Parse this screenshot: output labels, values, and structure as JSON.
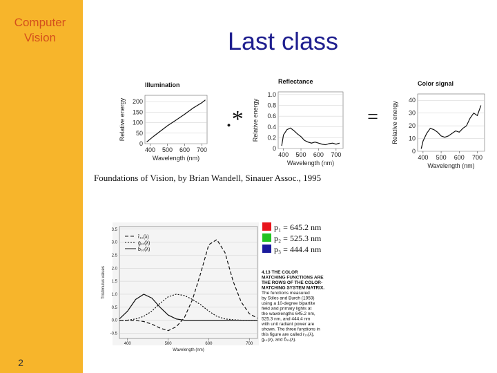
{
  "sidebar": {
    "title_lines": [
      "Computer",
      "Vision"
    ],
    "page_number": "2"
  },
  "title": "Last class",
  "operators": [
    ".*",
    "="
  ],
  "citation": "Foundations of Vision, by Brian Wandell, Sinauer Assoc., 1995",
  "figures": [
    {
      "type": "line",
      "title": "Illumination",
      "x_label": "Wavelength (nm)",
      "y_label": "Relative energy",
      "xlim": [
        370,
        730
      ],
      "ylim": [
        0,
        230
      ],
      "xticks": [
        400,
        500,
        600,
        700
      ],
      "yticks": [
        0,
        50,
        100,
        150,
        200
      ],
      "x": [
        380,
        420,
        460,
        500,
        550,
        600,
        650,
        700,
        720
      ],
      "series": [
        {
          "color": "#111111",
          "values": [
            8,
            35,
            60,
            85,
            112,
            140,
            170,
            195,
            208
          ]
        }
      ]
    },
    {
      "type": "line",
      "title": "Reflectance",
      "x_label": "Wavelength (nm)",
      "y_label": "Relative energy",
      "xlim": [
        370,
        740
      ],
      "ylim": [
        0,
        1.05
      ],
      "xticks": [
        400,
        500,
        600,
        700
      ],
      "yticks": [
        0,
        0.2,
        0.4,
        0.6,
        0.8,
        {
          "value": 1,
          "label": "1.0"
        }
      ],
      "x": [
        390,
        400,
        420,
        440,
        460,
        480,
        500,
        520,
        540,
        560,
        580,
        600,
        620,
        640,
        660,
        680,
        700,
        720
      ],
      "series": [
        {
          "color": "#111111",
          "values": [
            0.05,
            0.25,
            0.35,
            0.38,
            0.33,
            0.27,
            0.22,
            0.15,
            0.12,
            0.1,
            0.12,
            0.1,
            0.08,
            0.07,
            0.09,
            0.1,
            0.08,
            0.1
          ]
        }
      ]
    },
    {
      "type": "line",
      "title": "Color signal",
      "x_label": "Wavelength (nm)",
      "y_label": "Relative energy",
      "xlim": [
        370,
        740
      ],
      "ylim": [
        0,
        45
      ],
      "xticks": [
        400,
        500,
        600,
        700
      ],
      "yticks": [
        0,
        10,
        20,
        30,
        40
      ],
      "x": [
        390,
        400,
        420,
        440,
        460,
        480,
        500,
        520,
        540,
        560,
        580,
        600,
        620,
        640,
        660,
        680,
        700,
        720
      ],
      "series": [
        {
          "color": "#111111",
          "values": [
            2,
            8,
            14,
            18,
            17,
            15,
            12,
            11,
            12,
            14,
            16,
            15,
            18,
            20,
            26,
            30,
            28,
            36
          ]
        }
      ]
    },
    {
      "type": "line",
      "title": null,
      "x_label": "Wavelength (nm)",
      "y_label": "Tristimulus values",
      "xlim": [
        380,
        720
      ],
      "ylim": [
        -0.7,
        3.6
      ],
      "xticks": [
        400,
        500,
        600,
        700
      ],
      "yticks": [
        -0.5,
        {
          "value": 0,
          "label": "0.0"
        },
        0.5,
        {
          "value": 1,
          "label": "1.0"
        },
        1.5,
        {
          "value": 2,
          "label": "2.0"
        },
        2.5,
        {
          "value": 3,
          "label": "3.0"
        },
        3.5
      ],
      "x": [
        380,
        400,
        420,
        440,
        460,
        480,
        500,
        520,
        540,
        560,
        580,
        600,
        620,
        640,
        660,
        680,
        700,
        720
      ],
      "series": [
        {
          "name": "r̄₁₀(λ)",
          "color": "#111111",
          "dash": "5 3",
          "values": [
            0,
            0,
            -0.01,
            -0.05,
            -0.15,
            -0.3,
            -0.4,
            -0.25,
            0.1,
            0.8,
            1.8,
            2.9,
            3.1,
            2.6,
            1.5,
            0.7,
            0.25,
            0.08
          ]
        },
        {
          "name": "ḡ₁₀(λ)",
          "color": "#111111",
          "dash": "2 2",
          "values": [
            0,
            0,
            0.05,
            0.15,
            0.35,
            0.65,
            0.9,
            1.0,
            0.95,
            0.8,
            0.6,
            0.35,
            0.15,
            0.05,
            0.02,
            0,
            0,
            0
          ]
        },
        {
          "name": "b̄₁₀(λ)",
          "color": "#111111",
          "dash": "none",
          "values": [
            0.05,
            0.35,
            0.8,
            1.0,
            0.85,
            0.5,
            0.2,
            0.05,
            0,
            0,
            0,
            0,
            0,
            0,
            0,
            0,
            0,
            0
          ]
        }
      ]
    }
  ],
  "primaries": [
    {
      "label": "p₁ = 645.2 nm",
      "color": "#e8141c"
    },
    {
      "label": "p₂ = 525.3 nm",
      "color": "#22c322"
    },
    {
      "label": "p₃ = 444.4 nm",
      "color": "#1a1a9c"
    }
  ],
  "caption": {
    "heading": [
      "4.13  THE COLOR",
      "MATCHING FUNCTIONS ARE",
      "THE ROWS OF THE COLOR-",
      "MATCHING SYSTEM MATRIX."
    ],
    "body": [
      "The functions measured",
      "by Stiles and Burch (1959)",
      "using a 10-degree bipartite",
      "field and primary lights at",
      "the wavelengths 645.2 nm,",
      "525.3 nm, and 444.4 nm",
      "with unit radiant power are",
      "shown. The three functions in",
      "this figure are called r̄₁₀(λ),",
      "ḡ₁₀(λ), and b̄₁₀(λ)."
    ]
  }
}
